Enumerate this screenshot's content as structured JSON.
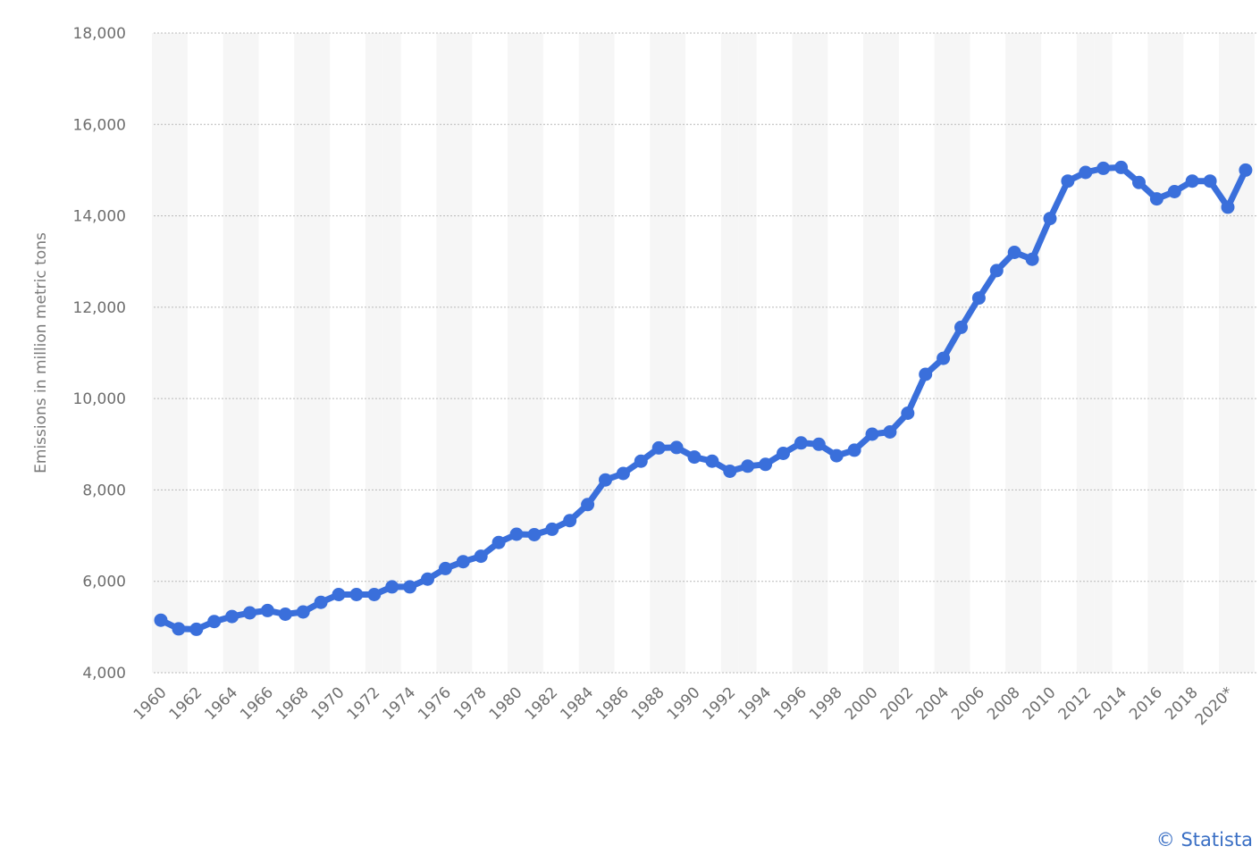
{
  "chart_data": {
    "type": "line",
    "title": "",
    "xlabel": "",
    "ylabel": "Emissions in million metric tons",
    "ylim": [
      4000,
      18000
    ],
    "yticks": [
      4000,
      6000,
      8000,
      10000,
      12000,
      14000,
      16000,
      18000
    ],
    "ytick_labels": [
      "4,000",
      "6,000",
      "8,000",
      "10,000",
      "12,000",
      "14,000",
      "16,000",
      "18,000"
    ],
    "xtick_labels": [
      "1960",
      "1962",
      "1964",
      "1966",
      "1968",
      "1970",
      "1972",
      "1974",
      "1976",
      "1978",
      "1980",
      "1982",
      "1984",
      "1986",
      "1988",
      "1990",
      "1992",
      "1994",
      "1996",
      "1998",
      "2000",
      "2002",
      "2004",
      "2006",
      "2008",
      "2010",
      "2012",
      "2014",
      "2016",
      "2018",
      "2020*"
    ],
    "categories": [
      "1960",
      "1961",
      "1962",
      "1963",
      "1964",
      "1965",
      "1966",
      "1967",
      "1968",
      "1969",
      "1970",
      "1971",
      "1972",
      "1973",
      "1974",
      "1975",
      "1976",
      "1977",
      "1978",
      "1979",
      "1980",
      "1981",
      "1982",
      "1983",
      "1984",
      "1985",
      "1986",
      "1987",
      "1988",
      "1989",
      "1990",
      "1991",
      "1992",
      "1993",
      "1994",
      "1995",
      "1996",
      "1997",
      "1998",
      "1999",
      "2000",
      "2001",
      "2002",
      "2003",
      "2004",
      "2005",
      "2006",
      "2007",
      "2008",
      "2009",
      "2010",
      "2011",
      "2012",
      "2013",
      "2014",
      "2015",
      "2016",
      "2017",
      "2018",
      "2019",
      "2020*",
      "2021"
    ],
    "series": [
      {
        "color": "#3a6fdb",
        "values": [
          5150,
          4960,
          4950,
          5120,
          5230,
          5310,
          5360,
          5280,
          5330,
          5540,
          5710,
          5710,
          5710,
          5880,
          5880,
          6050,
          6280,
          6430,
          6550,
          6850,
          7030,
          7020,
          7140,
          7330,
          7680,
          8220,
          8360,
          8630,
          8920,
          8930,
          8720,
          8630,
          8410,
          8520,
          8560,
          8800,
          9030,
          9000,
          8750,
          8870,
          9220,
          9270,
          9680,
          10530,
          10880,
          11560,
          12200,
          12800,
          13200,
          13050,
          13940,
          14760,
          14950,
          15040,
          15060,
          14730,
          14370,
          14530,
          14760,
          14760,
          14190,
          15000
        ]
      }
    ],
    "grid": true,
    "legend": "none"
  },
  "credit": "© Statista"
}
